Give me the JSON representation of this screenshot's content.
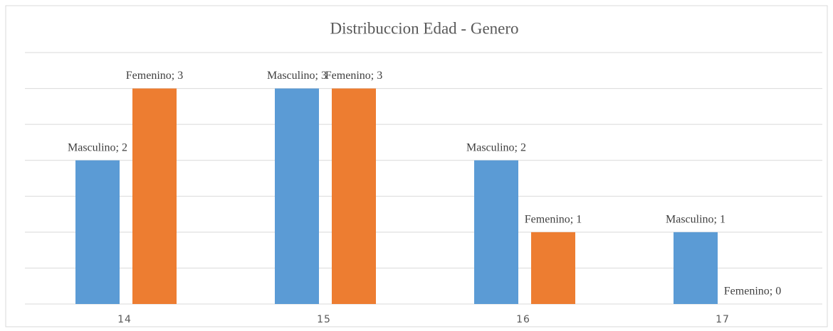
{
  "chart_data": {
    "type": "bar",
    "title": "Distribuccion Edad - Genero",
    "categories": [
      "14",
      "15",
      "16",
      "17"
    ],
    "series": [
      {
        "name": "Masculino",
        "color": "#5b9bd5",
        "values": [
          2,
          3,
          2,
          1
        ],
        "value_labels": [
          "Masculino; 2",
          "Masculino; 3",
          "Masculino; 2",
          "Masculino; 1"
        ]
      },
      {
        "name": "Femenino",
        "color": "#ed7d31",
        "values": [
          3,
          3,
          1,
          0
        ],
        "value_labels": [
          "Femenino; 3",
          "Femenino; 3",
          "Femenino; 1",
          "Femenino; 0"
        ]
      }
    ],
    "ylim": [
      0,
      3.5
    ],
    "yticks": [
      0,
      0.5,
      1,
      1.5,
      2,
      2.5,
      3,
      3.5
    ],
    "grid": true
  }
}
